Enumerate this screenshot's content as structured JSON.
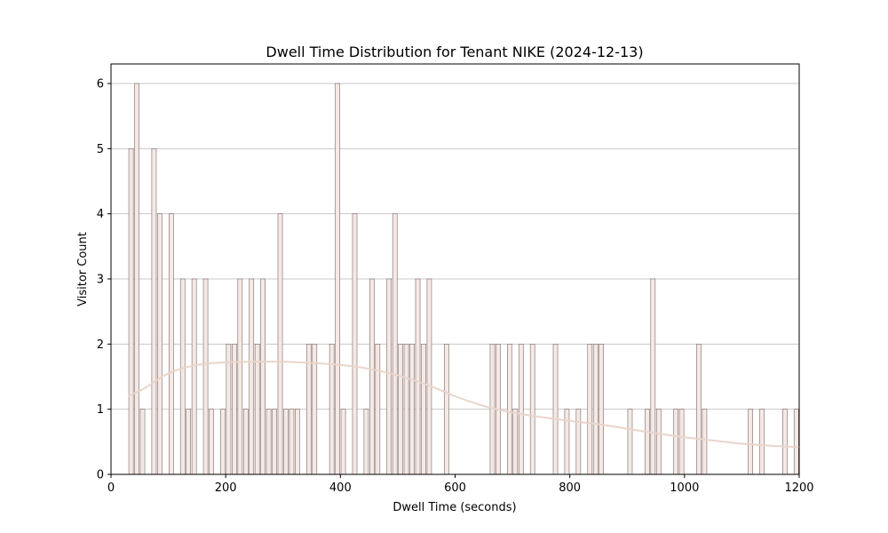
{
  "chart_data": {
    "type": "bar",
    "title": "Dwell Time Distribution for Tenant NIKE (2024-12-13)",
    "xlabel": "Dwell Time (seconds)",
    "ylabel": "Visitor Count",
    "xlim": [
      0,
      1200
    ],
    "ylim": [
      0,
      6.3
    ],
    "xticks": [
      0,
      200,
      400,
      600,
      800,
      1000,
      1200
    ],
    "yticks": [
      0,
      1,
      2,
      3,
      4,
      5,
      6
    ],
    "grid": "y",
    "bin_width": 10,
    "bar_color": "#f5e9e5",
    "bar_edge_color": "#7a6a66",
    "kde_color": "#ead5ca",
    "bins": [
      {
        "x": 30,
        "count": 5
      },
      {
        "x": 40,
        "count": 6
      },
      {
        "x": 50,
        "count": 1
      },
      {
        "x": 70,
        "count": 5
      },
      {
        "x": 80,
        "count": 4
      },
      {
        "x": 100,
        "count": 4
      },
      {
        "x": 120,
        "count": 3
      },
      {
        "x": 130,
        "count": 1
      },
      {
        "x": 140,
        "count": 3
      },
      {
        "x": 160,
        "count": 3
      },
      {
        "x": 170,
        "count": 1
      },
      {
        "x": 190,
        "count": 1
      },
      {
        "x": 200,
        "count": 2
      },
      {
        "x": 210,
        "count": 2
      },
      {
        "x": 220,
        "count": 3
      },
      {
        "x": 230,
        "count": 1
      },
      {
        "x": 240,
        "count": 3
      },
      {
        "x": 250,
        "count": 2
      },
      {
        "x": 260,
        "count": 3
      },
      {
        "x": 270,
        "count": 1
      },
      {
        "x": 280,
        "count": 1
      },
      {
        "x": 290,
        "count": 4
      },
      {
        "x": 300,
        "count": 1
      },
      {
        "x": 310,
        "count": 1
      },
      {
        "x": 320,
        "count": 1
      },
      {
        "x": 340,
        "count": 2
      },
      {
        "x": 350,
        "count": 2
      },
      {
        "x": 380,
        "count": 2
      },
      {
        "x": 390,
        "count": 6
      },
      {
        "x": 400,
        "count": 1
      },
      {
        "x": 420,
        "count": 4
      },
      {
        "x": 440,
        "count": 1
      },
      {
        "x": 450,
        "count": 3
      },
      {
        "x": 460,
        "count": 2
      },
      {
        "x": 480,
        "count": 3
      },
      {
        "x": 490,
        "count": 4
      },
      {
        "x": 500,
        "count": 2
      },
      {
        "x": 510,
        "count": 2
      },
      {
        "x": 520,
        "count": 2
      },
      {
        "x": 530,
        "count": 3
      },
      {
        "x": 540,
        "count": 2
      },
      {
        "x": 550,
        "count": 3
      },
      {
        "x": 580,
        "count": 2
      },
      {
        "x": 660,
        "count": 2
      },
      {
        "x": 670,
        "count": 2
      },
      {
        "x": 690,
        "count": 2
      },
      {
        "x": 700,
        "count": 1
      },
      {
        "x": 710,
        "count": 2
      },
      {
        "x": 730,
        "count": 2
      },
      {
        "x": 770,
        "count": 2
      },
      {
        "x": 790,
        "count": 1
      },
      {
        "x": 810,
        "count": 1
      },
      {
        "x": 830,
        "count": 2
      },
      {
        "x": 840,
        "count": 2
      },
      {
        "x": 850,
        "count": 2
      },
      {
        "x": 900,
        "count": 1
      },
      {
        "x": 930,
        "count": 1
      },
      {
        "x": 940,
        "count": 3
      },
      {
        "x": 950,
        "count": 1
      },
      {
        "x": 980,
        "count": 1
      },
      {
        "x": 990,
        "count": 1
      },
      {
        "x": 1020,
        "count": 2
      },
      {
        "x": 1030,
        "count": 1
      },
      {
        "x": 1110,
        "count": 1
      },
      {
        "x": 1130,
        "count": 1
      },
      {
        "x": 1170,
        "count": 1
      },
      {
        "x": 1190,
        "count": 1
      }
    ],
    "kde": {
      "x": [
        30,
        60,
        100,
        150,
        200,
        250,
        300,
        350,
        400,
        450,
        500,
        550,
        600,
        650,
        700,
        750,
        800,
        850,
        900,
        950,
        1000,
        1050,
        1100,
        1150,
        1200
      ],
      "y": [
        1.2,
        1.33,
        1.55,
        1.68,
        1.72,
        1.73,
        1.73,
        1.71,
        1.68,
        1.62,
        1.52,
        1.38,
        1.2,
        1.05,
        0.95,
        0.88,
        0.82,
        0.77,
        0.7,
        0.63,
        0.57,
        0.52,
        0.47,
        0.44,
        0.42
      ]
    }
  }
}
